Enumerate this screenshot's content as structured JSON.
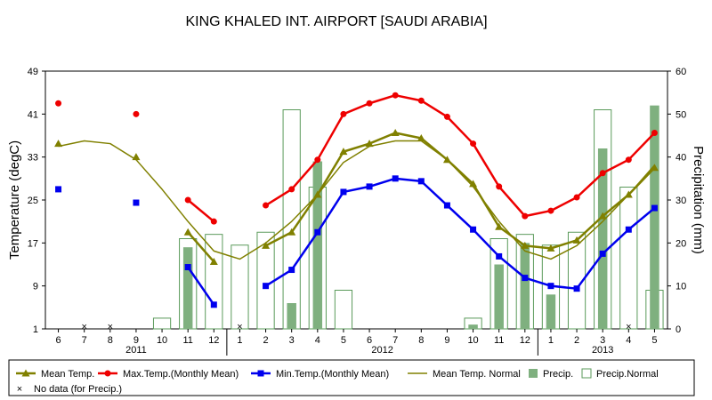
{
  "chart_data": {
    "type": "line",
    "title": "KING KHALED INT. AIRPORT [SAUDI ARABIA]",
    "ylabel_left": "Temperature (degC)",
    "ylabel_right": "Precipitation (mm)",
    "ylim_left": [
      1,
      49
    ],
    "ylim_right": [
      0,
      60
    ],
    "yticks_left": [
      "1",
      "9",
      "17",
      "25",
      "33",
      "41",
      "49"
    ],
    "yticks_right": [
      "0",
      "10",
      "20",
      "30",
      "40",
      "50",
      "60"
    ],
    "categories": [
      "6",
      "7",
      "8",
      "9",
      "10",
      "11",
      "12",
      "1",
      "2",
      "3",
      "4",
      "5",
      "6",
      "7",
      "8",
      "9",
      "10",
      "11",
      "12",
      "1",
      "2",
      "3",
      "4",
      "5"
    ],
    "years": [
      {
        "label": "2011",
        "start": 0,
        "end": 6
      },
      {
        "label": "2012",
        "start": 7,
        "end": 18
      },
      {
        "label": "2013",
        "start": 19,
        "end": 23
      }
    ],
    "series": [
      {
        "name": "Mean Temp.",
        "color": "#808000",
        "marker": "triangle",
        "values": [
          35.5,
          null,
          null,
          33,
          null,
          19,
          13.5,
          null,
          16.5,
          19,
          26,
          34,
          35.5,
          37.5,
          36.5,
          32.5,
          28,
          20,
          16.5,
          16,
          17.5,
          22,
          26,
          31
        ]
      },
      {
        "name": "Max.Temp.(Monthly Mean)",
        "color": "#ee0000",
        "marker": "circle",
        "values": [
          43,
          null,
          null,
          41,
          null,
          25,
          21,
          null,
          24,
          27,
          32.5,
          41,
          43,
          44.5,
          43.5,
          40.5,
          35.5,
          27.5,
          22,
          23,
          25.5,
          30,
          32.5,
          37.5
        ]
      },
      {
        "name": "Min.Temp.(Monthly Mean)",
        "color": "#0000ee",
        "marker": "square",
        "values": [
          27,
          null,
          null,
          24.5,
          null,
          12.5,
          5.5,
          null,
          9,
          12,
          19,
          26.5,
          27.5,
          29,
          28.5,
          24,
          19.5,
          14.5,
          10.5,
          9,
          8.5,
          15,
          19.5,
          23.5
        ]
      },
      {
        "name": "Mean Temp. Normal",
        "color": "#808000",
        "marker": "none",
        "style": "normal-line",
        "values": [
          35,
          36,
          35.5,
          32.5,
          27,
          21,
          15.5,
          14,
          17,
          21,
          26,
          32,
          35,
          36,
          36,
          32.5,
          27.5,
          21,
          15.5,
          14,
          16.5,
          21,
          26,
          31.5
        ]
      }
    ],
    "precip": {
      "name": "Precip.",
      "color": "#7fb07f",
      "values": [
        null,
        null,
        null,
        null,
        0,
        19,
        null,
        null,
        null,
        6,
        39,
        null,
        null,
        null,
        null,
        null,
        1,
        15,
        20,
        8,
        null,
        42,
        null,
        52
      ]
    },
    "precip_normal": {
      "name": "Precip.Normal",
      "color": "#5a9a5a",
      "values": [
        null,
        null,
        null,
        null,
        2.5,
        21,
        22,
        19.5,
        22.5,
        51,
        33,
        9,
        null,
        null,
        null,
        null,
        2.5,
        21,
        22,
        19.5,
        22.5,
        51,
        33,
        9
      ]
    },
    "no_data": {
      "name": "No data (for Precip.)",
      "indices": [
        1,
        2,
        7,
        22
      ]
    },
    "legend": {
      "placement": "bottom",
      "items": [
        {
          "label": "Mean Temp.",
          "key": "mean"
        },
        {
          "label": "Max.Temp.(Monthly Mean)",
          "key": "max"
        },
        {
          "label": "Min.Temp.(Monthly Mean)",
          "key": "min"
        },
        {
          "label": "Mean Temp. Normal",
          "key": "normal"
        },
        {
          "label": "Precip.",
          "key": "precip"
        },
        {
          "label": "Precip.Normal",
          "key": "precipnormal"
        },
        {
          "label": "No data (for Precip.)",
          "key": "nodata"
        }
      ]
    }
  }
}
